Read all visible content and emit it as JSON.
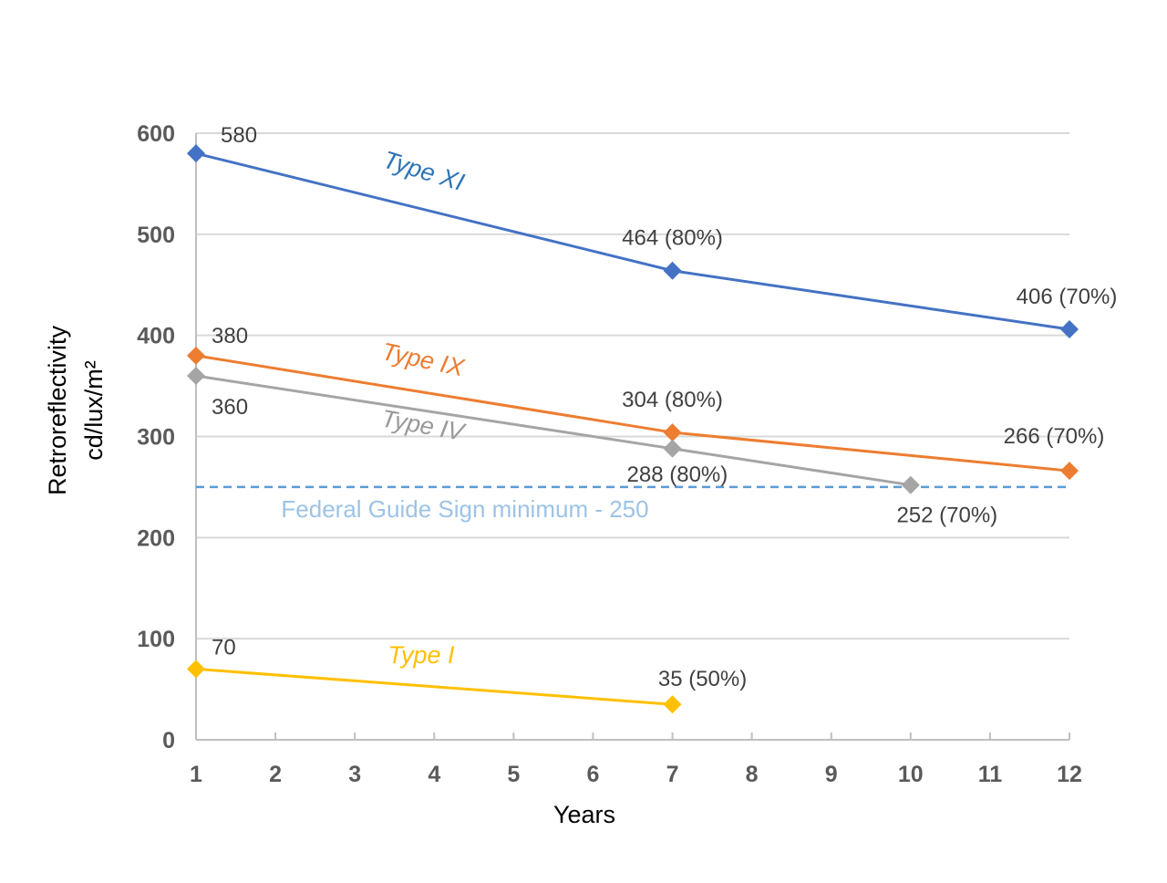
{
  "chart_data": {
    "type": "line",
    "title": "",
    "xlabel": "Years",
    "ylabel": "Retroreflectivity",
    "ylabel_units": "cd/lux/m²",
    "xlim": [
      1,
      12
    ],
    "ylim": [
      0,
      600
    ],
    "x_ticks": [
      1,
      2,
      3,
      4,
      5,
      6,
      7,
      8,
      9,
      10,
      11,
      12
    ],
    "y_ticks": [
      0,
      100,
      200,
      300,
      400,
      500,
      600
    ],
    "grid": true,
    "legend": "inline labels",
    "series": [
      {
        "name": "Type XI",
        "color": "#4472C4",
        "label_color": "#2E75B6",
        "points": [
          {
            "x": 1,
            "y": 580,
            "label": "580"
          },
          {
            "x": 7,
            "y": 464,
            "label": "464 (80%)"
          },
          {
            "x": 12,
            "y": 406,
            "label": "406 (70%)"
          }
        ]
      },
      {
        "name": "Type IX",
        "color": "#ED7D31",
        "label_color": "#ED7D31",
        "points": [
          {
            "x": 1,
            "y": 380,
            "label": "380"
          },
          {
            "x": 7,
            "y": 304,
            "label": "304 (80%)"
          },
          {
            "x": 12,
            "y": 266,
            "label": "266 (70%)"
          }
        ]
      },
      {
        "name": "Type IV",
        "color": "#A5A5A5",
        "label_color": "#999999",
        "points": [
          {
            "x": 1,
            "y": 360,
            "label": "360"
          },
          {
            "x": 7,
            "y": 288,
            "label": "288 (80%)"
          },
          {
            "x": 10,
            "y": 252,
            "label": "252 (70%)"
          }
        ]
      },
      {
        "name": "Type I",
        "color": "#FFC000",
        "label_color": "#FFC000",
        "points": [
          {
            "x": 1,
            "y": 70,
            "label": "70"
          },
          {
            "x": 7,
            "y": 35,
            "label": "35 (50%)"
          }
        ]
      }
    ],
    "reference_line": {
      "label": "Federal Guide Sign minimum - 250",
      "y": 250,
      "color": "#5B9BD5",
      "label_color": "#9DC3E6",
      "style": "dashed"
    }
  }
}
